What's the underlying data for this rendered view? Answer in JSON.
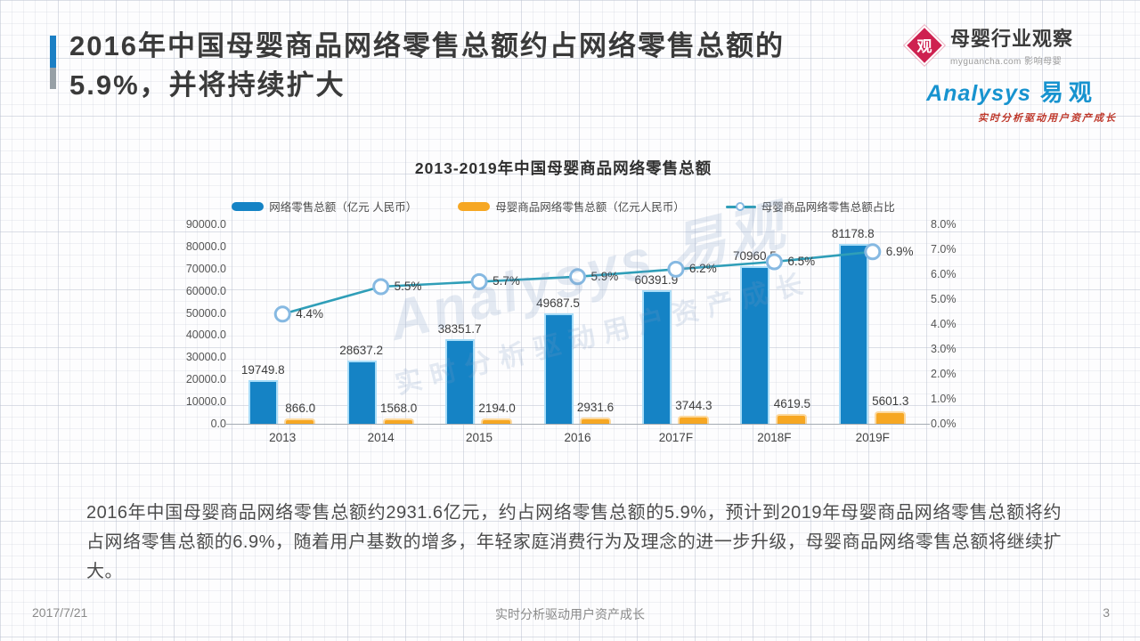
{
  "header": {
    "title_line1": "2016年中国母婴商品网络零售总额约占网络零售总额的",
    "title_line2": "5.9%，并将持续扩大"
  },
  "logos": {
    "myguancha": {
      "icon_char": "观",
      "name": "母婴行业观察",
      "subtitle": "myguancha.com 影响母婴"
    },
    "analysys": {
      "name_en": "Analysys",
      "name_cn": "易观",
      "tagline": "实时分析驱动用户资产成长"
    }
  },
  "chart_data": {
    "type": "bar+line",
    "title": "2013-2019年中国母婴商品网络零售总额",
    "categories": [
      "2013",
      "2014",
      "2015",
      "2016",
      "2017F",
      "2018F",
      "2019F"
    ],
    "series": [
      {
        "name": "网络零售总额（亿元 人民币）",
        "type": "bar",
        "axis": "left",
        "color": "#1583c5",
        "values": [
          19749.8,
          28637.2,
          38351.7,
          49687.5,
          60391.9,
          70960.5,
          81178.8
        ],
        "data_labels": [
          "19749.8",
          "28637.2",
          "38351.7",
          "49687.5",
          "60391.9",
          "70960.5",
          "81178.8"
        ]
      },
      {
        "name": "母婴商品网络零售总额（亿元人民币）",
        "type": "bar",
        "axis": "left",
        "color": "#f6a723",
        "values": [
          866.0,
          1568.0,
          2194.0,
          2931.6,
          3744.3,
          4619.5,
          5601.3
        ],
        "data_labels": [
          "866.0",
          "1568.0",
          "2194.0",
          "2931.6",
          "3744.3",
          "4619.5",
          "5601.3"
        ]
      },
      {
        "name": "母婴商品网络零售总额占比",
        "type": "line",
        "axis": "right",
        "color": "#2f9eb8",
        "marker_stroke": "#86b9e2",
        "values": [
          4.4,
          5.5,
          5.7,
          5.9,
          6.2,
          6.5,
          6.9
        ],
        "data_labels": [
          "4.4%",
          "5.5%",
          "5.7%",
          "5.9%",
          "6.2%",
          "6.5%",
          "6.9%"
        ]
      }
    ],
    "left_axis": {
      "min": 0,
      "max": 90000,
      "step": 10000,
      "tick_labels": [
        "90000.0",
        "80000.0",
        "70000.0",
        "60000.0",
        "50000.0",
        "40000.0",
        "30000.0",
        "20000.0",
        "10000.0",
        "0.0"
      ]
    },
    "right_axis": {
      "min": 0,
      "max": 8,
      "step": 1,
      "tick_labels": [
        "8.0%",
        "7.0%",
        "6.0%",
        "5.0%",
        "4.0%",
        "3.0%",
        "2.0%",
        "1.0%",
        "0.0%"
      ]
    },
    "legend_position": "top",
    "grid": false
  },
  "body_paragraph": "2016年中国母婴商品网络零售总额约2931.6亿元，约占网络零售总额的5.9%，预计到2019年母婴商品网络零售总额将约占网络零售总额的6.9%，随着用户基数的增多，年轻家庭消费行为及理念的进一步升级，母婴商品网络零售总额将继续扩大。",
  "watermark": {
    "line1": "Analysys 易观",
    "line2": "实时分析驱动用户资产成长"
  },
  "footer": {
    "date": "2017/7/21",
    "slogan": "实时分析驱动用户资产成长",
    "page_number": "3"
  },
  "colors": {
    "accent_blue": "#1b7fc4",
    "accent_gray": "#97a0a6",
    "bar_total": "#1583c5",
    "bar_total_halo": "#a9ddf8",
    "bar_maternal": "#f6a723",
    "bar_maternal_halo": "#fcd9a0",
    "line_share": "#2f9eb8",
    "marker_ring": "#86b9e2",
    "logo_red": "#ce2150",
    "analysys_blue": "#1793cf",
    "tagline_red": "#bf392c"
  }
}
